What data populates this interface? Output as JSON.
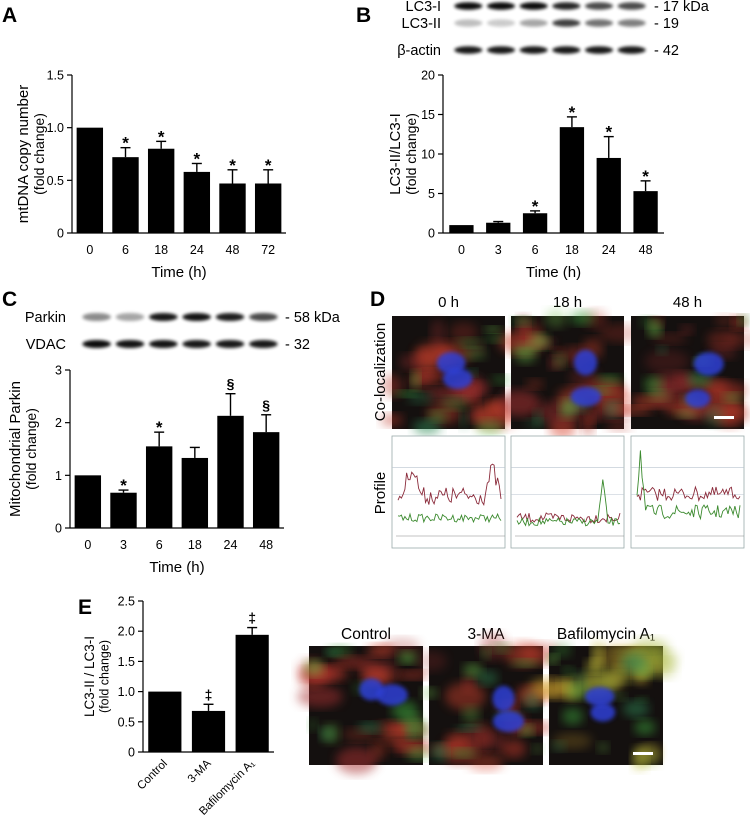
{
  "figure": {
    "panelA": {
      "letter": "A",
      "chart_data": {
        "type": "bar",
        "ylabel": "mtDNA copy number",
        "ylabel2": "(fold change)",
        "xlabel": "Time (h)",
        "ylim": [
          0,
          1.5
        ],
        "yticks": [
          "0",
          "0.5",
          "1.0",
          "1.5"
        ],
        "categories": [
          "0",
          "6",
          "18",
          "24",
          "48",
          "72"
        ],
        "values": [
          1.0,
          0.72,
          0.8,
          0.58,
          0.47,
          0.47
        ],
        "errors": [
          0,
          0.09,
          0.07,
          0.08,
          0.13,
          0.13
        ],
        "marks": [
          "",
          "*",
          "*",
          "*",
          "*",
          "*"
        ]
      }
    },
    "panelB": {
      "letter": "B",
      "blot": {
        "rows": [
          "LC3-I",
          "LC3-II",
          "β-actin"
        ],
        "sizes": [
          "- 17 kDa",
          "- 19",
          "- 42"
        ]
      },
      "chart_data": {
        "type": "bar",
        "ylabel": "LC3-II/LC3-I",
        "ylabel2": "(fold change)",
        "xlabel": "Time (h)",
        "ylim": [
          0,
          20
        ],
        "yticks": [
          "0",
          "5",
          "10",
          "15",
          "20"
        ],
        "categories": [
          "0",
          "3",
          "6",
          "18",
          "24",
          "48"
        ],
        "values": [
          1.0,
          1.3,
          2.5,
          13.4,
          9.5,
          5.3
        ],
        "errors": [
          0,
          0.15,
          0.3,
          1.3,
          2.7,
          1.3
        ],
        "marks": [
          "",
          "",
          "*",
          "*",
          "*",
          "*"
        ]
      }
    },
    "panelC": {
      "letter": "C",
      "blot": {
        "rows": [
          "Parkin",
          "VDAC"
        ],
        "sizes": [
          "- 58 kDa",
          "- 32"
        ]
      },
      "chart_data": {
        "type": "bar",
        "ylabel": "Mitochondrial Parkin",
        "ylabel2": "(fold change)",
        "xlabel": "Time (h)",
        "ylim": [
          0,
          3
        ],
        "yticks": [
          "0",
          "1",
          "2",
          "3"
        ],
        "categories": [
          "0",
          "3",
          "6",
          "18",
          "24",
          "48"
        ],
        "values": [
          1.0,
          0.67,
          1.55,
          1.33,
          2.13,
          1.82
        ],
        "errors": [
          0,
          0.05,
          0.27,
          0.2,
          0.42,
          0.33
        ],
        "marks": [
          "",
          "*",
          "*",
          "",
          "§",
          "§"
        ]
      }
    },
    "panelD": {
      "letter": "D",
      "timepoints": [
        "0 h",
        "18 h",
        "48 h"
      ],
      "row1_label": "Co-localization",
      "row2_label": "Profile"
    },
    "panelE": {
      "letter": "E",
      "chart_data": {
        "type": "bar",
        "ylabel": "LC3-II / LC3-I",
        "ylabel2": "(fold change)",
        "ylim": [
          0,
          2.5
        ],
        "yticks": [
          "0",
          "0.5",
          "1.0",
          "1.5",
          "2.0",
          "2.5"
        ],
        "categories": [
          "Control",
          "3-MA",
          "Bafilomycin A₁"
        ],
        "values": [
          1.0,
          0.68,
          1.94
        ],
        "errors": [
          0,
          0.11,
          0.12
        ],
        "marks": [
          "",
          "‡",
          "‡"
        ]
      },
      "image_labels": [
        "Control",
        "3-MA",
        "Bafilomycin A₁"
      ]
    },
    "colors": {
      "bar": "#000000",
      "micro_bg": "#14100f",
      "profile_red": "#8a2a3a",
      "profile_green": "#3b8a2e"
    }
  }
}
